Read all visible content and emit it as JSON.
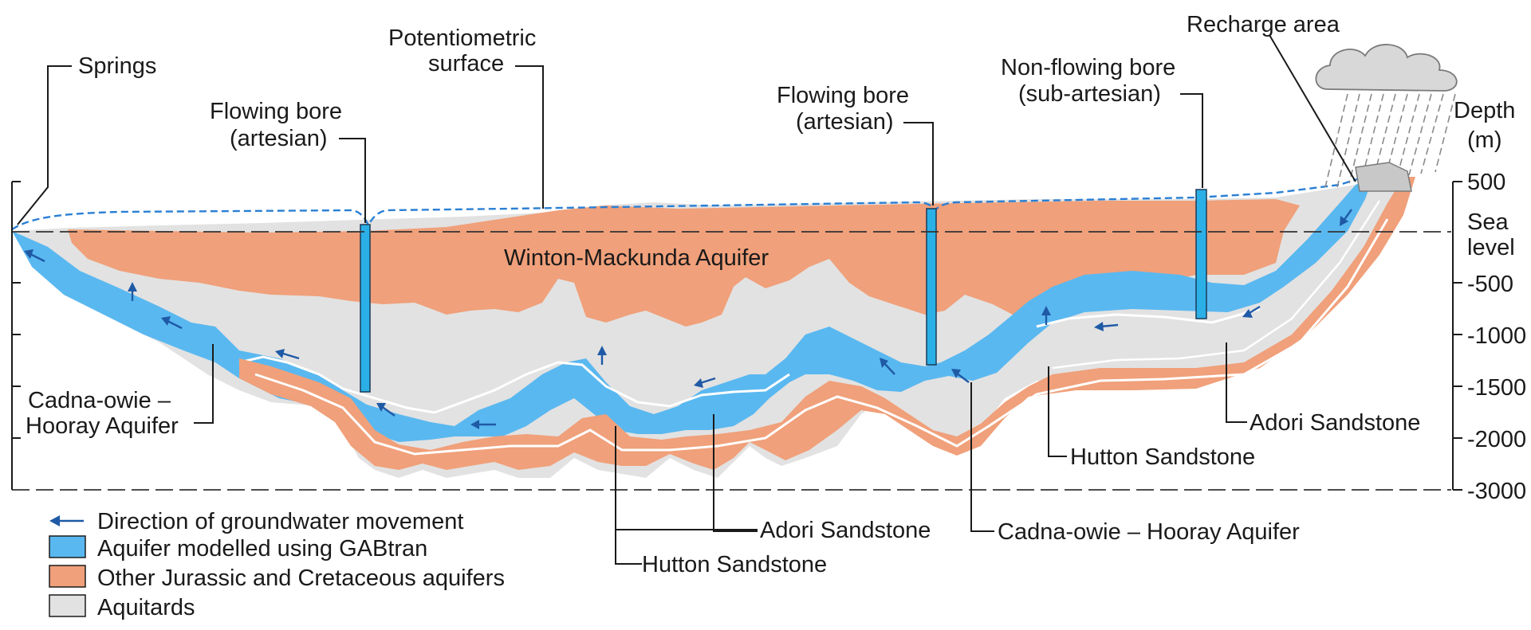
{
  "labels": {
    "springs": "Springs",
    "potentiometric_1": "Potentiometric",
    "potentiometric_2": "surface",
    "flowing_bore_a_1": "Flowing bore",
    "flowing_bore_a_2": "(artesian)",
    "flowing_bore_b_1": "Flowing bore",
    "flowing_bore_b_2": "(artesian)",
    "non_flowing_1": "Non-flowing bore",
    "non_flowing_2": "(sub-artesian)",
    "recharge": "Recharge area",
    "winton": "Winton-Mackunda Aquifer",
    "cadna_left_1": "Cadna-owie –",
    "cadna_left_2": "Hooray Aquifer",
    "adori_right": "Adori Sandstone",
    "hutton_right": "Hutton Sandstone",
    "adori_mid": "Adori Sandstone",
    "cadna_mid": "Cadna-owie – Hooray Aquifer",
    "hutton_mid": "Hutton Sandstone"
  },
  "depth_axis": {
    "title_1": "Depth",
    "title_2": "(m)",
    "ticks": [
      "500",
      "Sea",
      "level",
      "-500",
      "-1000",
      "-1500",
      "-2000",
      "-3000"
    ]
  },
  "legend": {
    "items": [
      {
        "label": "Direction of groundwater movement",
        "kind": "arrow"
      },
      {
        "label": "Aquifer modelled using GABtran",
        "kind": "swatch",
        "color": "#5ab8f0"
      },
      {
        "label": "Other Jurassic and Cretaceous aquifers",
        "kind": "swatch",
        "color": "#f0a07a"
      },
      {
        "label": "Aquitards",
        "kind": "swatch",
        "color": "#e2e2e2"
      }
    ]
  },
  "colors": {
    "aquifer_gabtran": "#5ab8f0",
    "other_aquifer": "#f0a07a",
    "aquitard": "#e2e2e2",
    "arrow": "#1f5aa6",
    "potentiometric_line": "#2a7fd4"
  }
}
